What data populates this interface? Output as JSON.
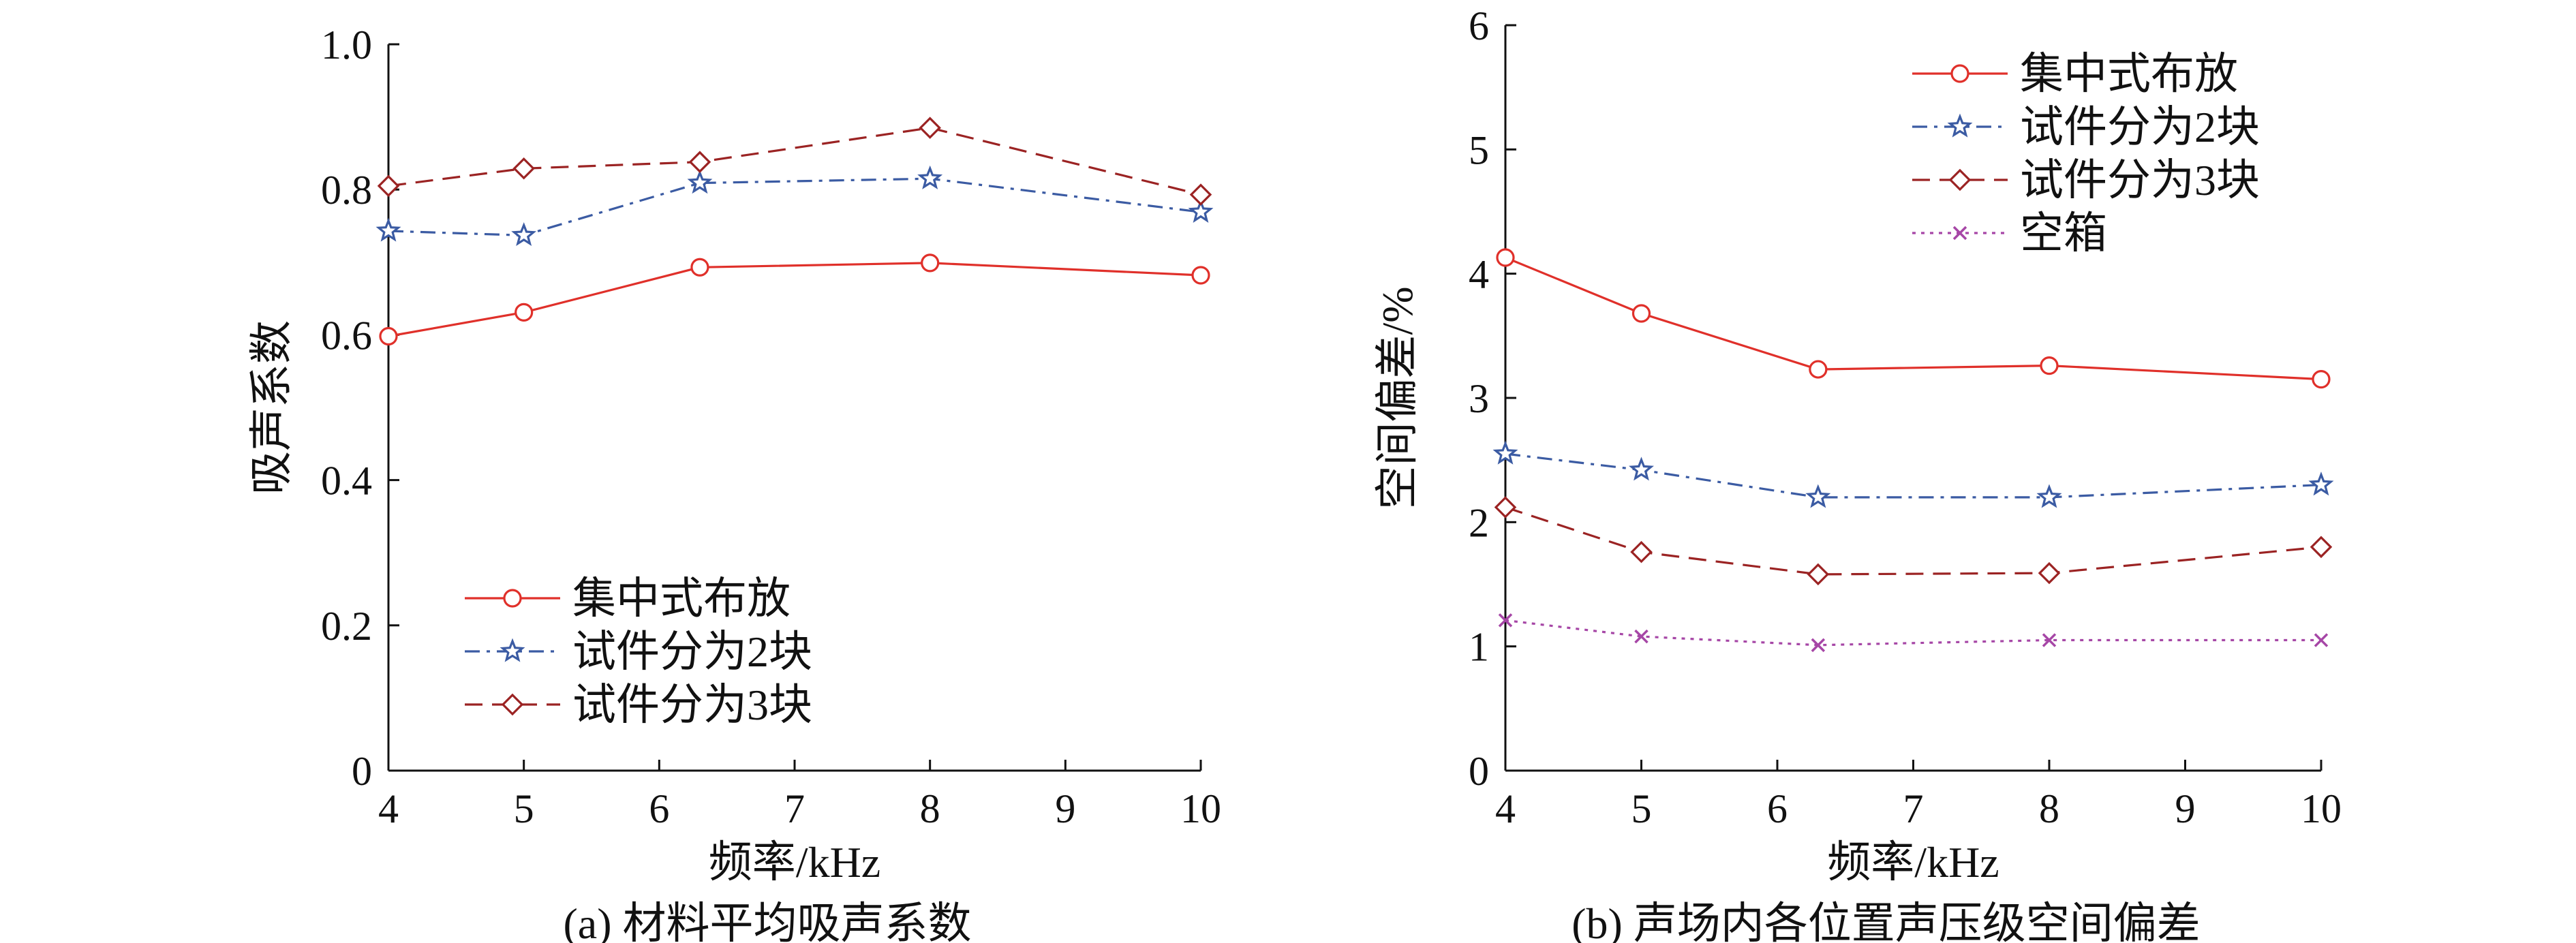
{
  "chart_data": [
    {
      "type": "line",
      "caption": "(a) 材料平均吸声系数",
      "xlabel": "频率/kHz",
      "ylabel": "吸声系数",
      "xlim": [
        4,
        10
      ],
      "ylim": [
        0,
        1.0
      ],
      "xticks": [
        "4",
        "5",
        "6",
        "7",
        "8",
        "9",
        "10"
      ],
      "yticks": [
        "0",
        "0.2",
        "0.4",
        "0.6",
        "0.8",
        "1.0"
      ],
      "legend_position": "lower-left",
      "x": [
        4,
        5,
        6.3,
        8,
        10
      ],
      "series": [
        {
          "name": "集中式布放",
          "marker": "circle",
          "dash": "solid",
          "color": "#e0302a",
          "values": [
            0.598,
            0.631,
            0.693,
            0.699,
            0.682
          ]
        },
        {
          "name": "试件分为2块",
          "marker": "star",
          "dash": "dashdot",
          "color": "#3b5ba3",
          "values": [
            0.743,
            0.737,
            0.809,
            0.815,
            0.769
          ]
        },
        {
          "name": "试件分为3块",
          "marker": "diamond",
          "dash": "dashed",
          "color": "#9b2323",
          "values": [
            0.805,
            0.829,
            0.838,
            0.885,
            0.793
          ]
        }
      ]
    },
    {
      "type": "line",
      "caption": "(b) 声场内各位置声压级空间偏差",
      "xlabel": "频率/kHz",
      "ylabel": "空间偏差/%",
      "xlim": [
        4,
        10
      ],
      "ylim": [
        0,
        6
      ],
      "xticks": [
        "4",
        "5",
        "6",
        "7",
        "8",
        "9",
        "10"
      ],
      "yticks": [
        "0",
        "1",
        "2",
        "3",
        "4",
        "5",
        "6"
      ],
      "legend_position": "top-right",
      "x": [
        4,
        5,
        6.3,
        8,
        10
      ],
      "series": [
        {
          "name": "集中式布放",
          "marker": "circle",
          "dash": "solid",
          "color": "#e0302a",
          "values": [
            4.13,
            3.68,
            3.23,
            3.26,
            3.15
          ]
        },
        {
          "name": "试件分为2块",
          "marker": "star",
          "dash": "dashdot",
          "color": "#3b5ba3",
          "values": [
            2.55,
            2.42,
            2.2,
            2.2,
            2.3
          ]
        },
        {
          "name": "试件分为3块",
          "marker": "diamond",
          "dash": "dashed",
          "color": "#9b2323",
          "values": [
            2.12,
            1.76,
            1.58,
            1.59,
            1.8
          ]
        },
        {
          "name": "空箱",
          "marker": "x",
          "dash": "dotted",
          "color": "#a646a6",
          "values": [
            1.21,
            1.08,
            1.01,
            1.05,
            1.05
          ]
        }
      ]
    }
  ]
}
